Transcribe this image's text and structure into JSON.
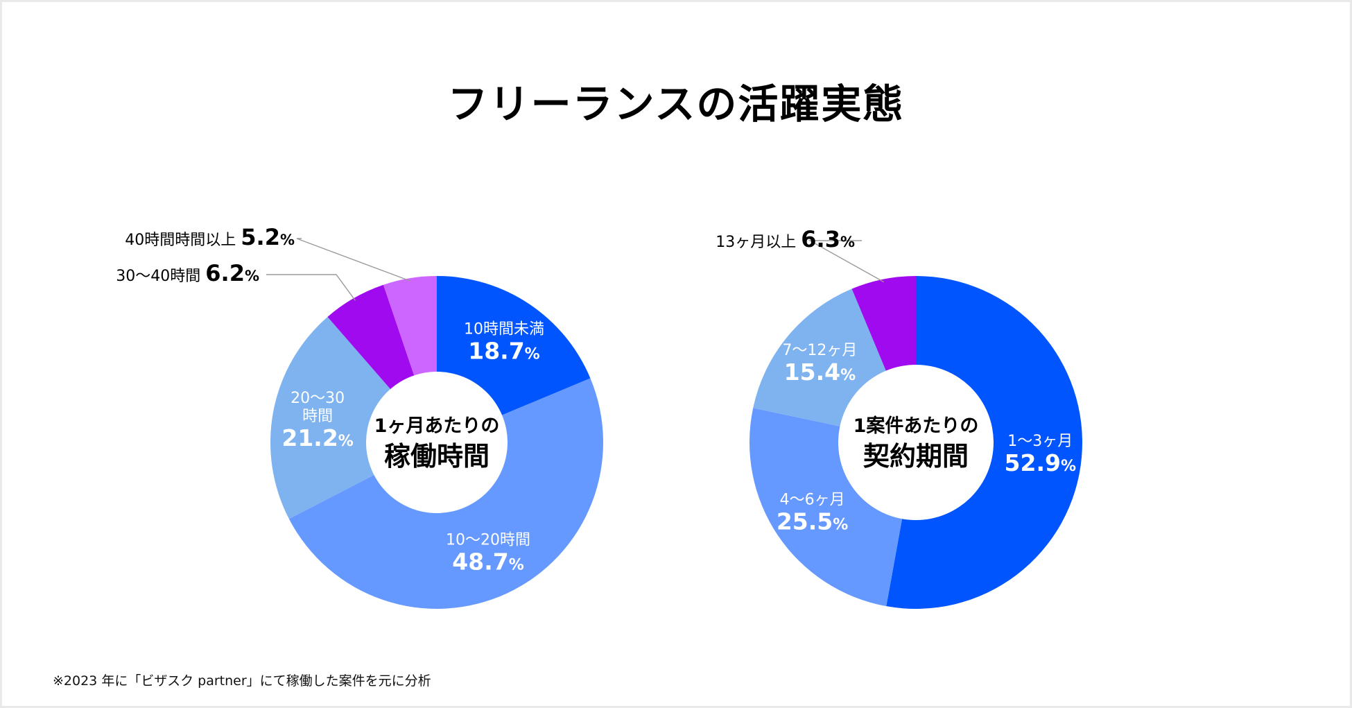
{
  "title": "フリーランスの活躍実態",
  "footnote": "※2023 年に「ビザスク partner」にて稼働した案件を元に分析",
  "colors": {
    "blue_dark": "#0055ff",
    "blue_mid": "#6699ff",
    "blue_light": "#7fb3f0",
    "purple": "#a00aee",
    "violet": "#cc66ff"
  },
  "chart_data": [
    {
      "type": "pie",
      "title": "1ヶ月あたりの稼働時間",
      "center_line1": "1ヶ月あたりの",
      "center_line2": "稼働時間",
      "categories": [
        "10時間未満",
        "10～20時間",
        "20～30時間",
        "30～40時間",
        "40時間時間以上"
      ],
      "values": [
        18.7,
        48.7,
        21.2,
        6.2,
        5.2
      ],
      "value_labels": [
        "18.7",
        "48.7",
        "21.2",
        "6.2",
        "5.2"
      ],
      "label_lines": [
        [
          "10時間未満"
        ],
        [
          "10～20時間"
        ],
        [
          "20～30",
          "時間"
        ],
        [
          "30～40時間"
        ],
        [
          "40時間時間以上"
        ]
      ],
      "slice_colors": [
        "#0055ff",
        "#6699ff",
        "#7fb3f0",
        "#a00aee",
        "#cc66ff"
      ],
      "callout": [
        false,
        false,
        false,
        true,
        true
      ],
      "unit": "%"
    },
    {
      "type": "pie",
      "title": "1案件あたりの契約期間",
      "center_line1": "1案件あたりの",
      "center_line2": "契約期間",
      "categories": [
        "1～3ヶ月",
        "4～6ヶ月",
        "7～12ヶ月",
        "13ヶ月以上"
      ],
      "values": [
        52.9,
        25.5,
        15.4,
        6.3
      ],
      "value_labels": [
        "52.9",
        "25.5",
        "15.4",
        "6.3"
      ],
      "label_lines": [
        [
          "1～3ヶ月"
        ],
        [
          "4～6ヶ月"
        ],
        [
          "7～12ヶ月"
        ],
        [
          "13ヶ月以上"
        ]
      ],
      "slice_colors": [
        "#0055ff",
        "#6699ff",
        "#7fb3f0",
        "#a00aee"
      ],
      "callout": [
        false,
        false,
        false,
        true
      ],
      "unit": "%"
    }
  ]
}
